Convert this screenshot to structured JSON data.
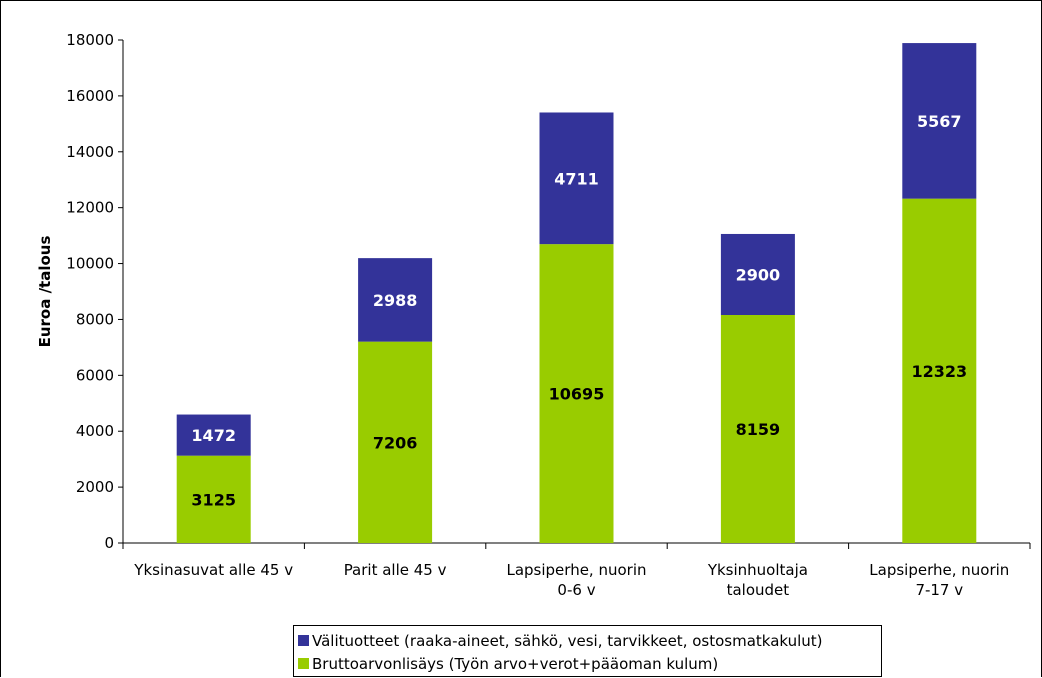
{
  "chart_data": {
    "type": "bar",
    "stacked": true,
    "title": "",
    "xlabel": "",
    "ylabel": "Euroa /talous",
    "ylim": [
      0,
      18000
    ],
    "yticks": [
      0,
      2000,
      4000,
      6000,
      8000,
      10000,
      12000,
      14000,
      16000,
      18000
    ],
    "categories": [
      [
        "Yksinasuvat alle 45 v"
      ],
      [
        "Parit alle 45 v"
      ],
      [
        "Lapsiperhe, nuorin",
        "0-6 v"
      ],
      [
        "Yksinhuoltaja",
        "taloudet"
      ],
      [
        "Lapsiperhe, nuorin",
        "7-17 v"
      ]
    ],
    "series": [
      {
        "name": "Bruttoarvonlisäys (Työn arvo+verot+pääoman kulum)",
        "color": "#99cc00",
        "label_color": "#000000",
        "values": [
          3125,
          7206,
          10695,
          8159,
          12323
        ]
      },
      {
        "name": "Välituotteet (raaka-aineet, sähkö, vesi, tarvikkeet, ostosmatkakulut)",
        "color": "#333399",
        "label_color": "#ffffff",
        "values": [
          1472,
          2988,
          4711,
          2900,
          5567
        ]
      }
    ],
    "grid": false,
    "legend_position": "bottom"
  },
  "legend": {
    "items": [
      {
        "label": "Välituotteet (raaka-aineet, sähkö, vesi, tarvikkeet, ostosmatkakulut)",
        "color": "#333399"
      },
      {
        "label": "Bruttoarvonlisäys (Työn arvo+verot+pääoman kulum)",
        "color": "#99cc00"
      }
    ]
  }
}
